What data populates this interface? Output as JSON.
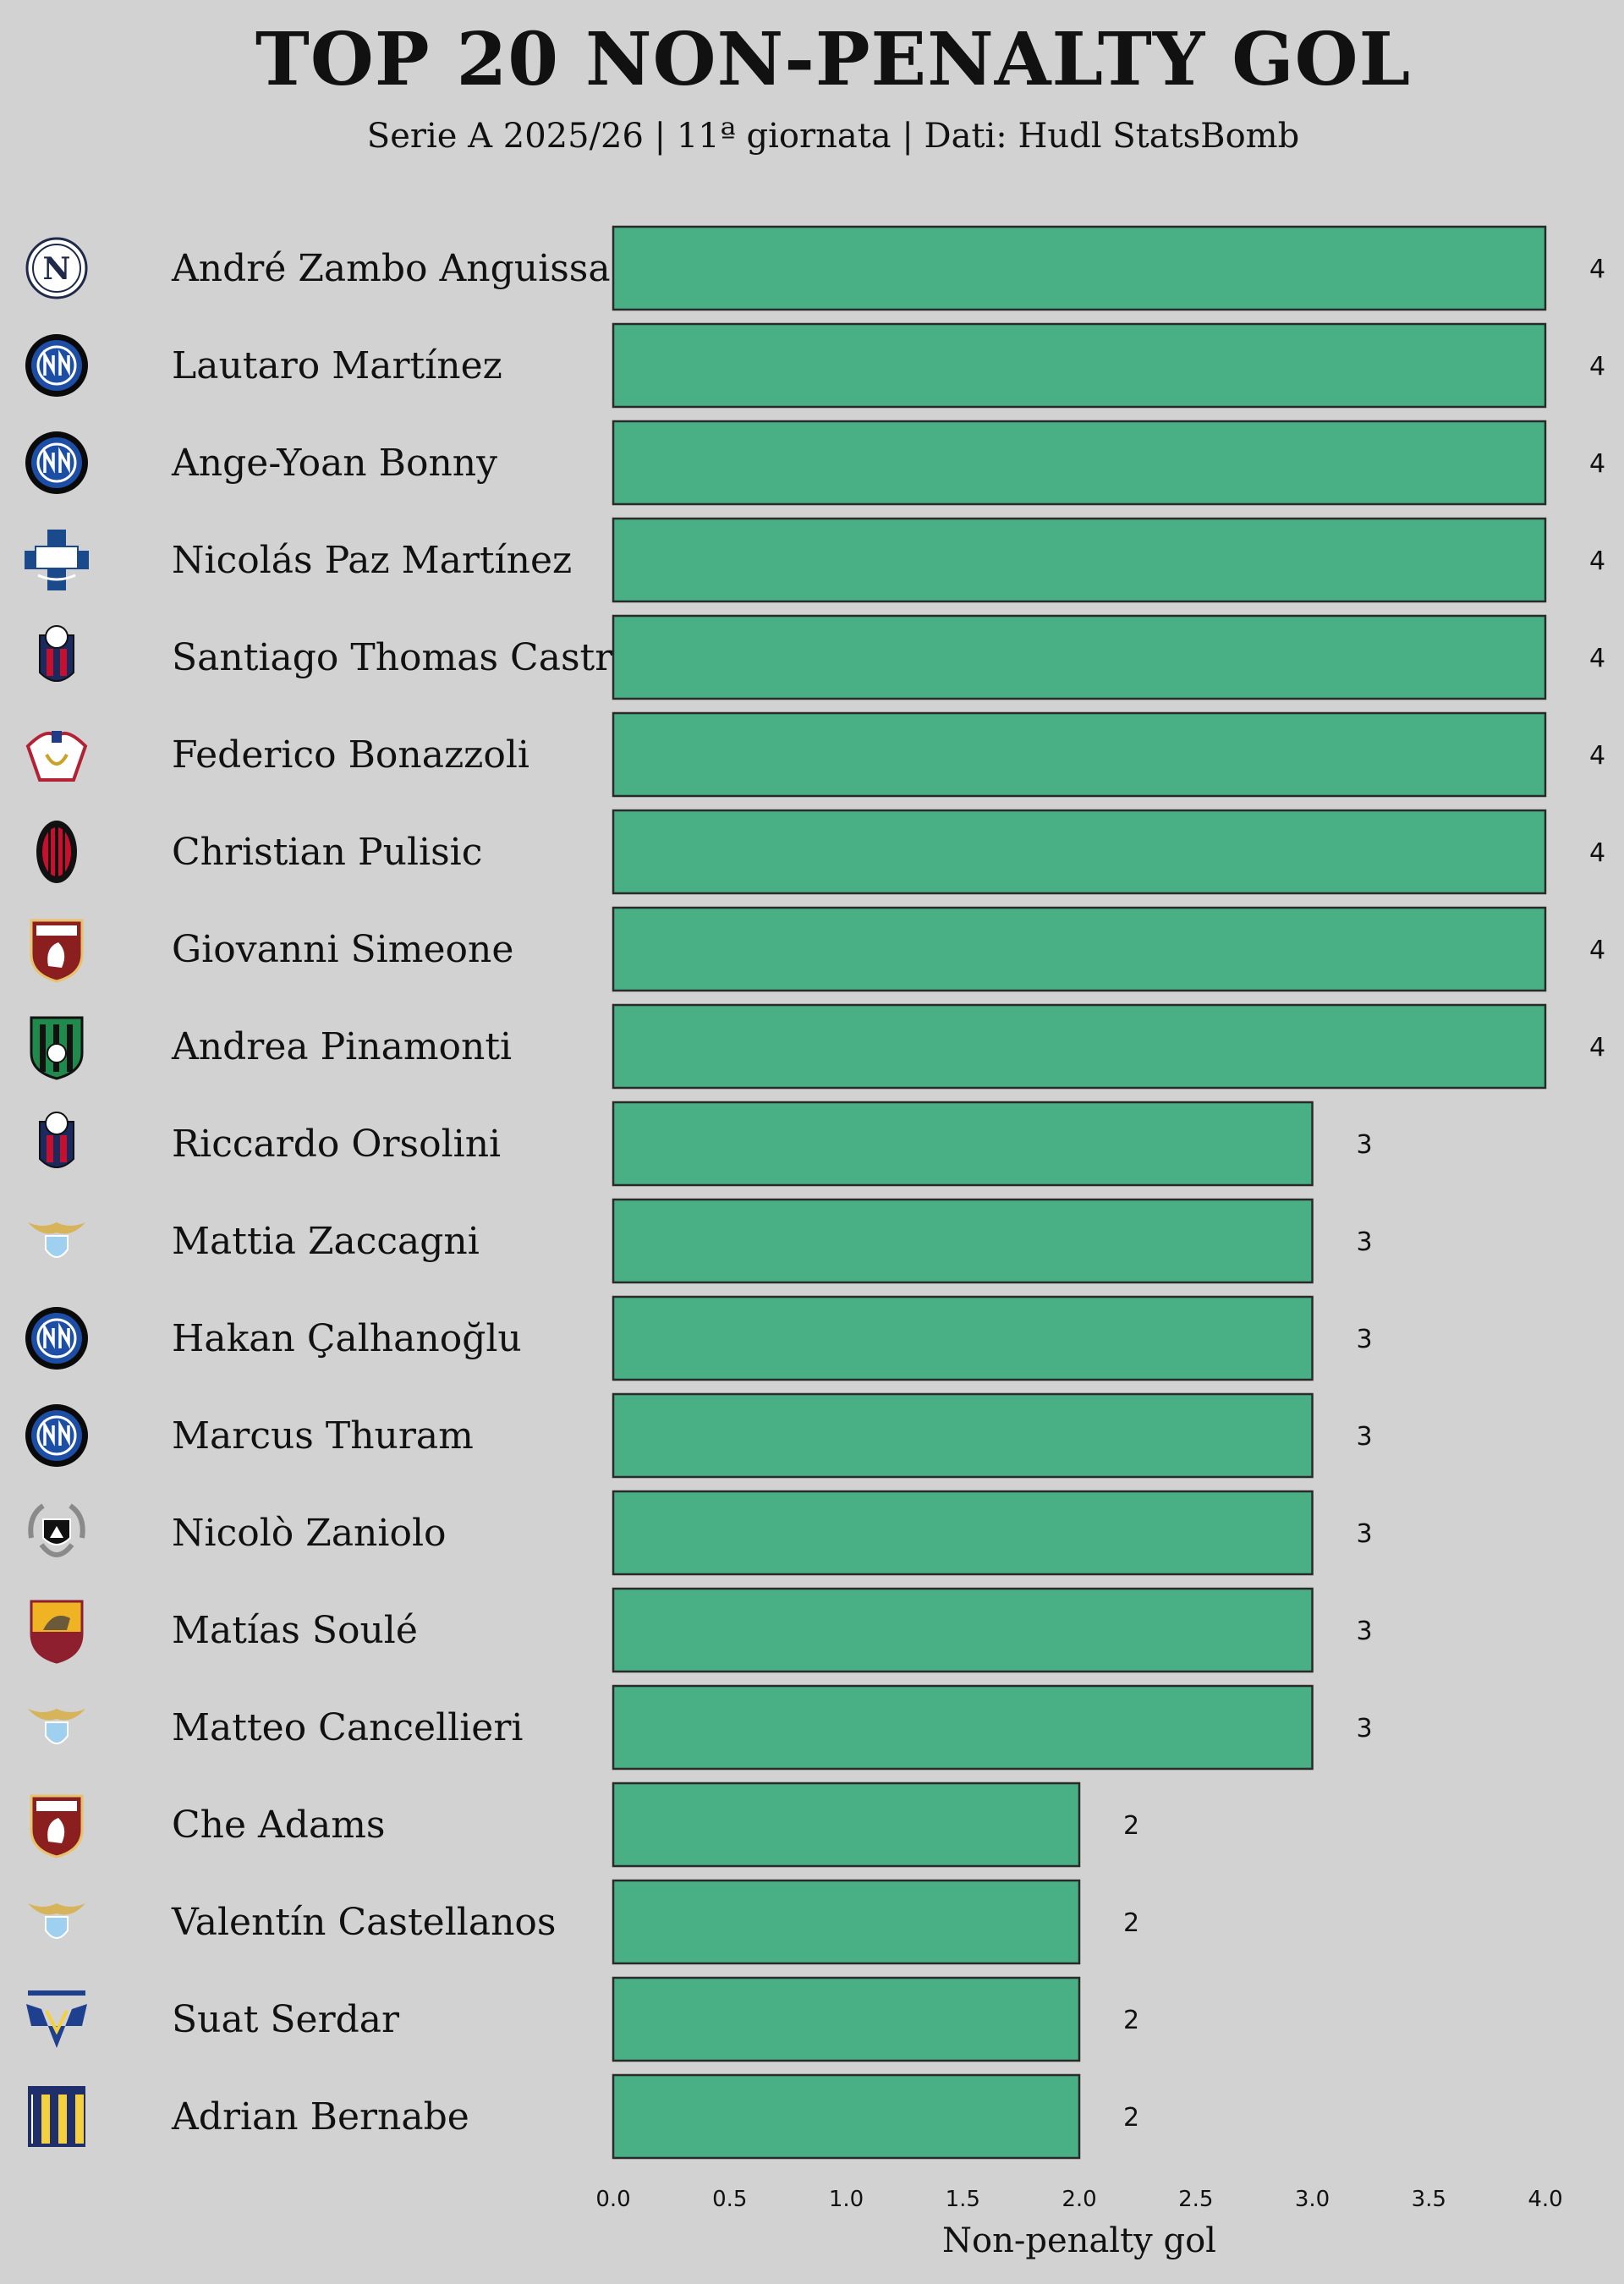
{
  "chart_data": {
    "type": "bar",
    "orientation": "horizontal",
    "title": "TOP 20 NON-PENALTY GOL",
    "subtitle": "Serie A 2025/26 | 11ª giornata | Dati: Hudl StatsBomb",
    "xlabel": "Non-penalty gol",
    "xlim": [
      0,
      4
    ],
    "xticks": [
      "0.0",
      "0.5",
      "1.0",
      "1.5",
      "2.0",
      "2.5",
      "3.0",
      "3.5",
      "4.0"
    ],
    "bar_color": "#48b084",
    "grid": false,
    "categories": [
      "André Zambo Anguissa",
      "Lautaro Martínez",
      "Ange-Yoan Bonny",
      "Nicolás Paz Martínez",
      "Santiago Thomas Castro",
      "Federico Bonazzoli",
      "Christian Pulisic",
      "Giovanni Simeone",
      "Andrea Pinamonti",
      "Riccardo Orsolini",
      "Mattia Zaccagni",
      "Hakan Çalhanoğlu",
      "Marcus Thuram",
      "Nicolò Zaniolo",
      "Matías Soulé",
      "Matteo Cancellieri",
      "Che Adams",
      "Valentín Castellanos",
      "Suat Serdar",
      "Adrian Bernabe"
    ],
    "values": [
      4,
      4,
      4,
      4,
      4,
      4,
      4,
      4,
      4,
      3,
      3,
      3,
      3,
      3,
      3,
      3,
      2,
      2,
      2,
      2
    ],
    "team_logos": [
      "napoli-logo",
      "inter-logo",
      "inter-logo",
      "como-logo",
      "bologna-logo",
      "cremonese-logo",
      "milan-logo",
      "torino-logo",
      "sassuolo-logo",
      "bologna-logo",
      "lazio-logo",
      "inter-logo",
      "inter-logo",
      "udinese-logo",
      "roma-logo",
      "lazio-logo",
      "torino-logo",
      "lazio-logo",
      "verona-logo",
      "parma-logo"
    ]
  }
}
